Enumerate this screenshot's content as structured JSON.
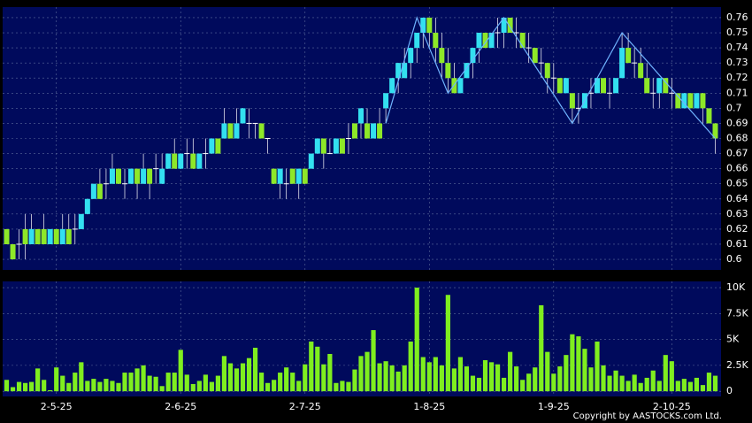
{
  "chart_data": [
    {
      "type": "candlestick",
      "categories": [
        null,
        null,
        null,
        null,
        null,
        null,
        null,
        null,
        "2-5-25",
        null,
        null,
        null,
        null,
        null,
        null,
        null,
        null,
        null,
        null,
        null,
        null,
        null,
        null,
        null,
        null,
        null,
        null,
        null,
        "2-6-25",
        null,
        null,
        null,
        null,
        null,
        null,
        null,
        null,
        null,
        null,
        null,
        null,
        null,
        null,
        null,
        null,
        null,
        null,
        null,
        "2-7-25",
        null,
        null,
        null,
        null,
        null,
        null,
        null,
        null,
        null,
        null,
        null,
        null,
        null,
        null,
        null,
        null,
        null,
        null,
        null,
        "1-8-25",
        null,
        null,
        null,
        null,
        null,
        null,
        null,
        null,
        null,
        null,
        null,
        null,
        null,
        null,
        null,
        null,
        null,
        null,
        null,
        "1-9-25",
        null,
        null,
        null,
        null,
        null,
        null,
        null,
        null,
        null,
        null,
        null,
        null,
        null,
        null,
        null,
        null,
        null,
        null,
        "2-10-25",
        null,
        null,
        null,
        null,
        null,
        null,
        null
      ],
      "open": [
        0.62,
        0.61,
        0.61,
        0.62,
        0.61,
        0.62,
        0.62,
        0.61,
        0.62,
        0.61,
        0.62,
        0.62,
        0.62,
        0.63,
        0.64,
        0.65,
        0.65,
        0.65,
        0.66,
        0.65,
        0.65,
        0.66,
        0.65,
        0.66,
        0.66,
        0.65,
        0.66,
        0.67,
        0.66,
        0.67,
        0.67,
        0.66,
        0.67,
        0.67,
        0.68,
        0.68,
        0.69,
        0.68,
        0.69,
        0.69,
        0.69,
        0.69,
        0.68,
        0.66,
        0.65,
        0.65,
        0.66,
        0.65,
        0.66,
        0.66,
        0.67,
        0.68,
        0.67,
        0.67,
        0.68,
        0.68,
        0.69,
        0.69,
        0.69,
        0.68,
        0.69,
        0.7,
        0.71,
        0.72,
        0.72,
        0.73,
        0.74,
        0.75,
        0.76,
        0.75,
        0.74,
        0.73,
        0.72,
        0.71,
        0.72,
        0.73,
        0.74,
        0.75,
        0.74,
        0.75,
        0.75,
        0.76,
        0.75,
        0.75,
        0.74,
        0.74,
        0.73,
        0.73,
        0.72,
        0.72,
        0.71,
        0.71,
        0.7,
        0.7,
        0.71,
        0.71,
        0.72,
        0.71,
        0.71,
        0.72,
        0.74,
        0.73,
        0.73,
        0.72,
        0.71,
        0.71,
        0.72,
        0.71,
        0.71,
        0.7,
        0.71,
        0.7,
        0.71,
        0.7,
        0.69
      ],
      "high": [
        0.62,
        0.61,
        0.62,
        0.63,
        0.63,
        0.62,
        0.63,
        0.62,
        0.62,
        0.63,
        0.63,
        0.63,
        0.63,
        0.64,
        0.65,
        0.66,
        0.66,
        0.67,
        0.66,
        0.66,
        0.66,
        0.66,
        0.67,
        0.66,
        0.67,
        0.67,
        0.67,
        0.68,
        0.67,
        0.68,
        0.68,
        0.67,
        0.68,
        0.68,
        0.68,
        0.7,
        0.69,
        0.7,
        0.7,
        0.7,
        0.69,
        0.69,
        0.68,
        0.66,
        0.66,
        0.66,
        0.66,
        0.66,
        0.66,
        0.67,
        0.68,
        0.68,
        0.68,
        0.68,
        0.68,
        0.69,
        0.69,
        0.7,
        0.7,
        0.69,
        0.7,
        0.71,
        0.72,
        0.73,
        0.74,
        0.74,
        0.75,
        0.76,
        0.76,
        0.76,
        0.75,
        0.74,
        0.73,
        0.72,
        0.73,
        0.74,
        0.75,
        0.75,
        0.75,
        0.76,
        0.76,
        0.76,
        0.76,
        0.75,
        0.75,
        0.74,
        0.74,
        0.73,
        0.73,
        0.72,
        0.72,
        0.71,
        0.71,
        0.71,
        0.72,
        0.72,
        0.72,
        0.72,
        0.72,
        0.75,
        0.75,
        0.74,
        0.74,
        0.73,
        0.72,
        0.72,
        0.72,
        0.72,
        0.71,
        0.71,
        0.71,
        0.71,
        0.71,
        0.7,
        0.69
      ],
      "low": [
        0.61,
        0.6,
        0.6,
        0.6,
        0.61,
        0.61,
        0.61,
        0.61,
        0.61,
        0.61,
        0.61,
        0.61,
        0.62,
        0.63,
        0.64,
        0.64,
        0.64,
        0.65,
        0.65,
        0.64,
        0.65,
        0.64,
        0.65,
        0.64,
        0.65,
        0.65,
        0.66,
        0.66,
        0.66,
        0.66,
        0.66,
        0.66,
        0.66,
        0.67,
        0.67,
        0.68,
        0.68,
        0.68,
        0.69,
        0.68,
        0.68,
        0.68,
        0.67,
        0.65,
        0.64,
        0.64,
        0.65,
        0.64,
        0.65,
        0.66,
        0.67,
        0.66,
        0.67,
        0.67,
        0.67,
        0.67,
        0.68,
        0.68,
        0.68,
        0.68,
        0.68,
        0.69,
        0.71,
        0.71,
        0.72,
        0.72,
        0.73,
        0.74,
        0.74,
        0.73,
        0.72,
        0.71,
        0.71,
        0.71,
        0.72,
        0.72,
        0.73,
        0.74,
        0.74,
        0.74,
        0.74,
        0.75,
        0.74,
        0.74,
        0.73,
        0.73,
        0.72,
        0.71,
        0.71,
        0.71,
        0.71,
        0.69,
        0.69,
        0.7,
        0.7,
        0.71,
        0.71,
        0.7,
        0.71,
        0.72,
        0.73,
        0.72,
        0.72,
        0.71,
        0.7,
        0.7,
        0.71,
        0.7,
        0.7,
        0.7,
        0.7,
        0.7,
        0.69,
        0.69,
        0.67
      ],
      "close": [
        0.61,
        0.6,
        0.61,
        0.61,
        0.62,
        0.61,
        0.61,
        0.62,
        0.61,
        0.62,
        0.61,
        0.62,
        0.63,
        0.64,
        0.65,
        0.64,
        0.65,
        0.66,
        0.65,
        0.65,
        0.66,
        0.65,
        0.66,
        0.65,
        0.66,
        0.66,
        0.67,
        0.66,
        0.67,
        0.67,
        0.66,
        0.67,
        0.67,
        0.68,
        0.67,
        0.69,
        0.68,
        0.69,
        0.7,
        0.69,
        0.69,
        0.68,
        0.68,
        0.65,
        0.66,
        0.65,
        0.65,
        0.66,
        0.65,
        0.67,
        0.68,
        0.67,
        0.67,
        0.68,
        0.67,
        0.68,
        0.68,
        0.7,
        0.68,
        0.69,
        0.68,
        0.71,
        0.72,
        0.73,
        0.73,
        0.74,
        0.75,
        0.76,
        0.75,
        0.74,
        0.73,
        0.72,
        0.71,
        0.72,
        0.73,
        0.74,
        0.75,
        0.74,
        0.75,
        0.75,
        0.76,
        0.75,
        0.75,
        0.74,
        0.74,
        0.73,
        0.73,
        0.72,
        0.72,
        0.71,
        0.72,
        0.7,
        0.7,
        0.71,
        0.71,
        0.72,
        0.71,
        0.71,
        0.72,
        0.74,
        0.73,
        0.73,
        0.72,
        0.71,
        0.71,
        0.72,
        0.71,
        0.71,
        0.7,
        0.71,
        0.7,
        0.71,
        0.7,
        0.69,
        0.68
      ],
      "up_color": "#33e0f0",
      "down_color": "#8ee828",
      "wick_color": "#ffffff",
      "zigzag": {
        "x": [
          61,
          66,
          71,
          80,
          91,
          99,
          114
        ],
        "values": [
          0.69,
          0.76,
          0.71,
          0.76,
          0.69,
          0.75,
          0.68
        ],
        "color": "#6fb4ff"
      },
      "ylim": [
        0.593,
        0.767
      ],
      "yticks": [
        0.6,
        0.61,
        0.62,
        0.63,
        0.64,
        0.65,
        0.66,
        0.67,
        0.68,
        0.69,
        0.7,
        0.71,
        0.72,
        0.73,
        0.74,
        0.75,
        0.76
      ],
      "grid": true
    },
    {
      "type": "bar",
      "values": [
        1100,
        400,
        900,
        800,
        900,
        2200,
        1100,
        100,
        2300,
        1500,
        800,
        1800,
        2800,
        1000,
        1200,
        900,
        1200,
        1000,
        800,
        1800,
        1800,
        2200,
        2500,
        1500,
        1400,
        500,
        1800,
        1800,
        4000,
        1600,
        700,
        1000,
        1600,
        900,
        1500,
        3400,
        2700,
        2200,
        2700,
        3200,
        4200,
        1800,
        800,
        1100,
        1800,
        2300,
        1800,
        1000,
        2600,
        4800,
        4300,
        2600,
        3600,
        800,
        1000,
        900,
        2100,
        3400,
        3800,
        5900,
        2700,
        2900,
        2500,
        1900,
        2500,
        4800,
        10000,
        3300,
        2800,
        3300,
        2500,
        9300,
        2200,
        3300,
        2400,
        1500,
        1300,
        3000,
        2800,
        2600,
        1300,
        3800,
        2400,
        1100,
        1700,
        2300,
        8300,
        3800,
        1700,
        2400,
        3500,
        5500,
        5300,
        4100,
        2300,
        4800,
        2500,
        1500,
        2000,
        1500,
        1000,
        1600,
        800,
        1300,
        2000,
        1000,
        3500,
        2900,
        1000,
        1200,
        900,
        1300,
        600,
        1800,
        1500
      ],
      "color": "#7fee1f",
      "ylim": [
        -500,
        10600
      ],
      "yticks": [
        0,
        {
          "value": 2500,
          "label": "2.5K"
        },
        {
          "value": 5000,
          "label": "5K"
        },
        {
          "value": 7500,
          "label": "7.5K"
        },
        {
          "value": 10000,
          "label": "10K"
        }
      ],
      "grid": true
    }
  ],
  "copyright": "Copyright by AASTOCKS.com Ltd."
}
